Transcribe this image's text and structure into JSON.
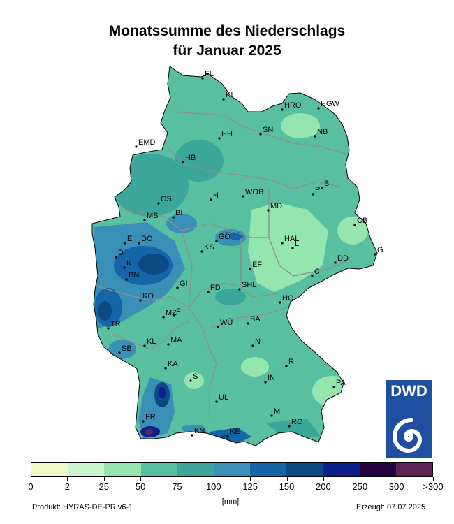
{
  "title_line1": "Monatssumme des Niederschlags",
  "title_line2": "für Januar  2025",
  "legend": {
    "unit": "[mm]",
    "colors": [
      "#f2f7c8",
      "#cbf5cf",
      "#94e6ae",
      "#58bfa0",
      "#3aa79a",
      "#3a8fb6",
      "#1565a8",
      "#0c4a85",
      "#0e1e8a",
      "#24033f",
      "#5e2458"
    ],
    "ticks": [
      "0",
      "2",
      "25",
      "50",
      "75",
      "100",
      "125",
      "150",
      "200",
      "250",
      "300",
      ">300"
    ]
  },
  "footer": {
    "product": "Produkt: HYRAS-DE-PR v6-1",
    "created": "Erzeugt: 07.07.2025"
  },
  "logo_text": "DWD",
  "cities": [
    "FL",
    "KI",
    "HRO",
    "HGW",
    "HH",
    "SN",
    "NB",
    "EMD",
    "HB",
    "H",
    "WOB",
    "P",
    "B",
    "OS",
    "BI",
    "MS",
    "MD",
    "CB",
    "DO",
    "E",
    "GÖ",
    "HAL",
    "L",
    "D",
    "KS",
    "EF",
    "DD",
    "G",
    "K",
    "BN",
    "GI",
    "FD",
    "SHL",
    "C",
    "KO",
    "HO",
    "MZ",
    "F",
    "TR",
    "WÜ",
    "BA",
    "KL",
    "MA",
    "N",
    "SB",
    "KA",
    "R",
    "S",
    "IN",
    "PA",
    "UL",
    "M",
    "FR",
    "RO",
    "KN",
    "KE"
  ]
}
